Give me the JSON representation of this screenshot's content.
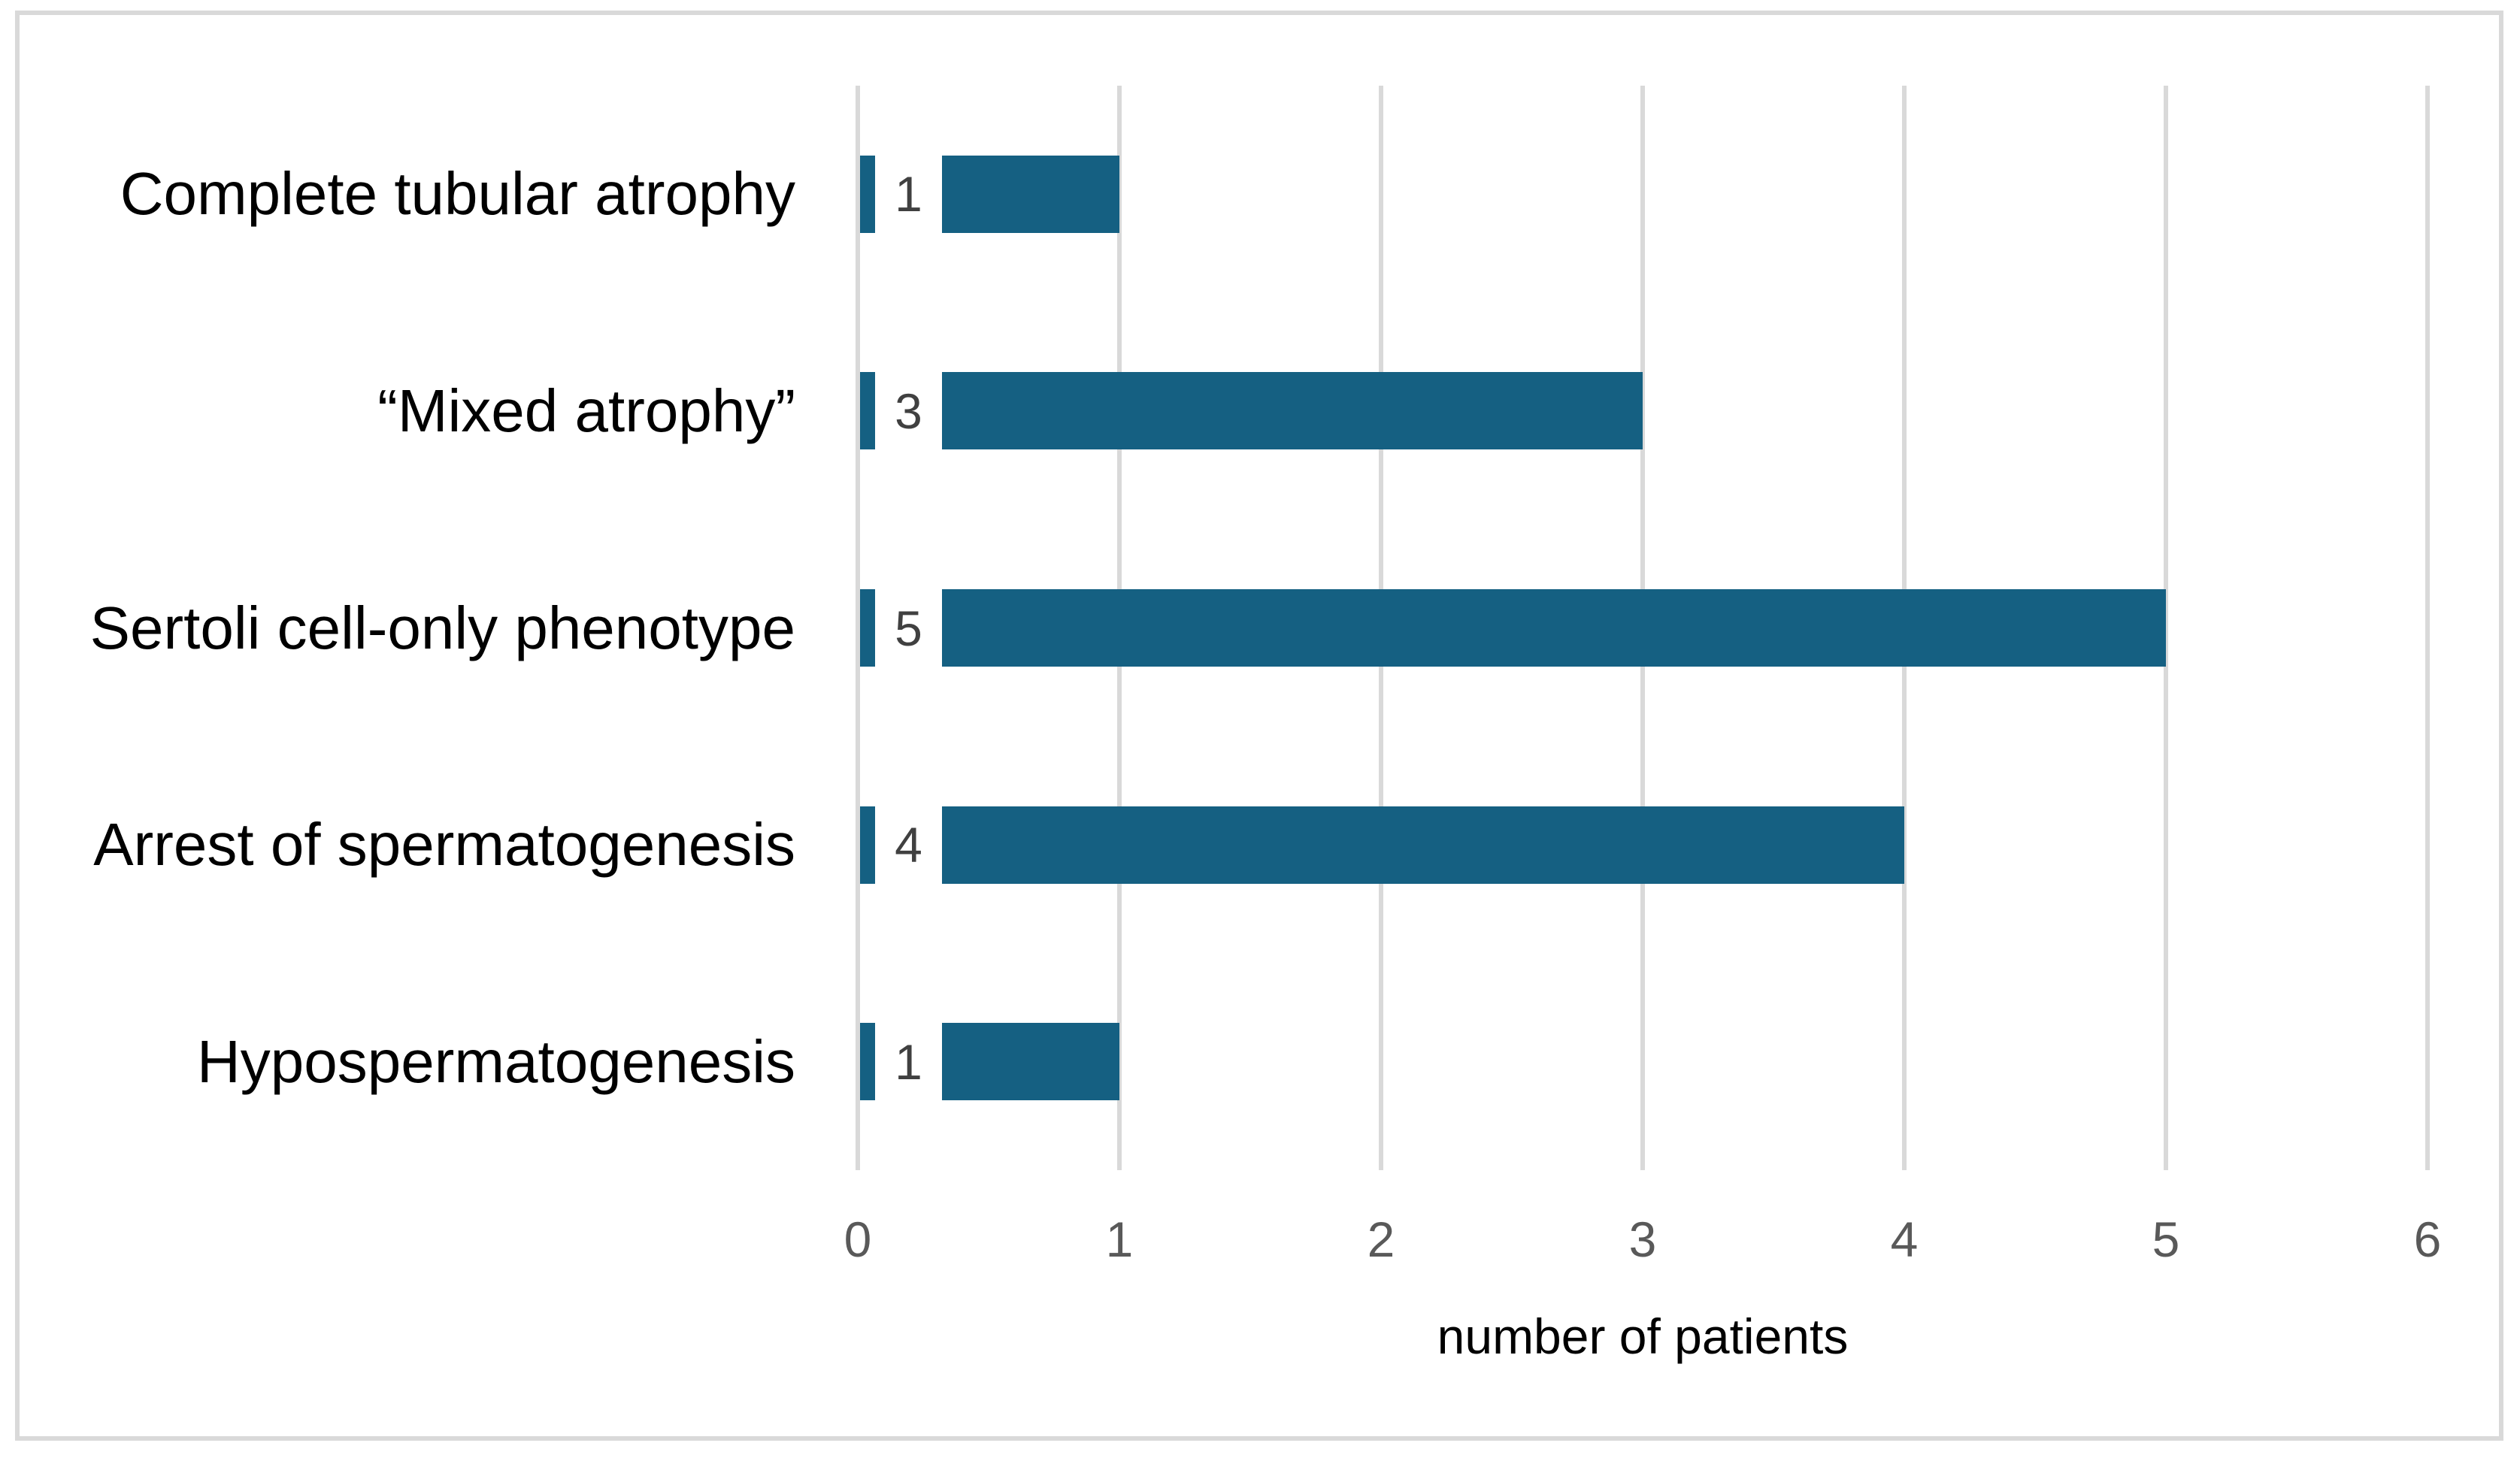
{
  "figure": {
    "kind": "horizontal-bar-chart",
    "title": ""
  },
  "chart_data": {
    "type": "bar",
    "orientation": "horizontal",
    "title": "",
    "xlabel": "number of patients",
    "ylabel": "",
    "categories": [
      "Complete tubular atrophy",
      "“Mixed atrophy”",
      "Sertoli cell-only phenotype",
      "Arrest of spermatogenesis",
      "Hypospermatogenesis"
    ],
    "values": [
      1,
      3,
      5,
      4,
      1
    ],
    "data_labels": [
      "1",
      "3",
      "5",
      "4",
      "1"
    ],
    "x_ticks": [
      "0",
      "1",
      "2",
      "3",
      "4",
      "5",
      "6"
    ],
    "xlim": [
      0,
      6
    ],
    "grid": true,
    "legend": false,
    "colors": {
      "bar": "#156082",
      "gridline": "#d9d9d9",
      "figure_border": "#d9d9d9",
      "background": "#ffffff",
      "tick_label": "#595959",
      "data_label": "#404040",
      "category_label": "#000000",
      "axis_title": "#000000"
    }
  }
}
